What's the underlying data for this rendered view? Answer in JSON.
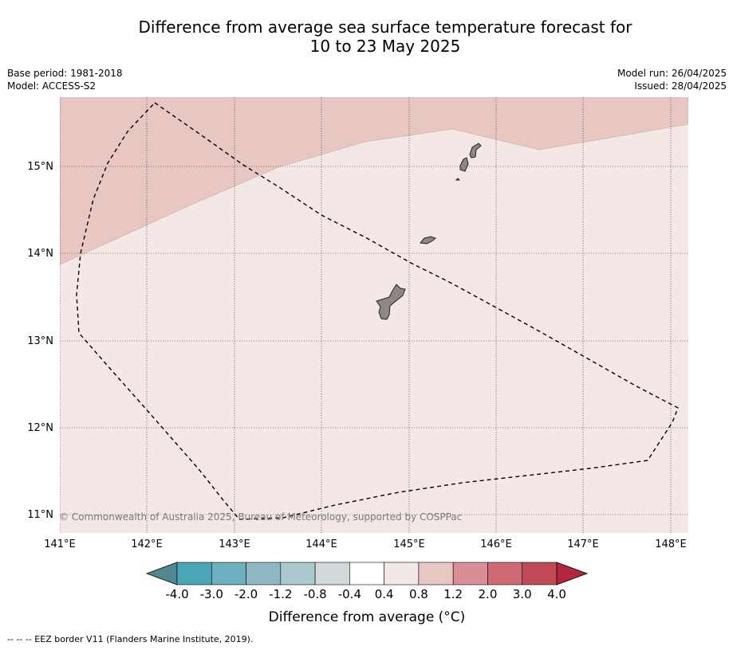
{
  "title": {
    "line1": "Difference from average sea surface temperature forecast for",
    "line2": "10 to 23 May 2025"
  },
  "meta": {
    "base_period": "Base period: 1981-2018",
    "model": "Model: ACCESS-S2",
    "model_run": "Model run: 26/04/2025",
    "issued": "Issued: 28/04/2025"
  },
  "map": {
    "lon_range": [
      141.0,
      148.2
    ],
    "lat_range": [
      10.8,
      15.8
    ],
    "lon_ticks": [
      "141°E",
      "142°E",
      "143°E",
      "144°E",
      "145°E",
      "146°E",
      "147°E",
      "148°E"
    ],
    "lat_ticks": [
      "15°N",
      "14°N",
      "13°N",
      "12°N",
      "11°N"
    ],
    "copyright": "© Commonwealth of Australia 2025, Bureau of Meteorology, supported by COSPPac",
    "anomaly_zones": [
      {
        "range": "0.8 to 1.2",
        "color": "#e8c6c2"
      },
      {
        "range": "0.4 to 0.8",
        "color": "#f4e8e6"
      }
    ],
    "land_color": "#8c8684"
  },
  "colorbar": {
    "label": "Difference from average (°C)",
    "ticks": [
      "-4.0",
      "-3.0",
      "-2.0",
      "-1.2",
      "-0.8",
      "-0.4",
      "0.4",
      "0.8",
      "1.2",
      "2.0",
      "3.0",
      "4.0"
    ],
    "colors": [
      "#4f8892",
      "#4ba6b6",
      "#6cb0bf",
      "#8db7c2",
      "#a9c9cc",
      "#d2d9db",
      "#ffffff",
      "#f4e8e6",
      "#e8c6c2",
      "#d98e97",
      "#cf6a75",
      "#c14a57",
      "#b42640"
    ]
  },
  "footnote": "--  --  -- EEZ border V11 (Flanders Marine Institute, 2019)."
}
